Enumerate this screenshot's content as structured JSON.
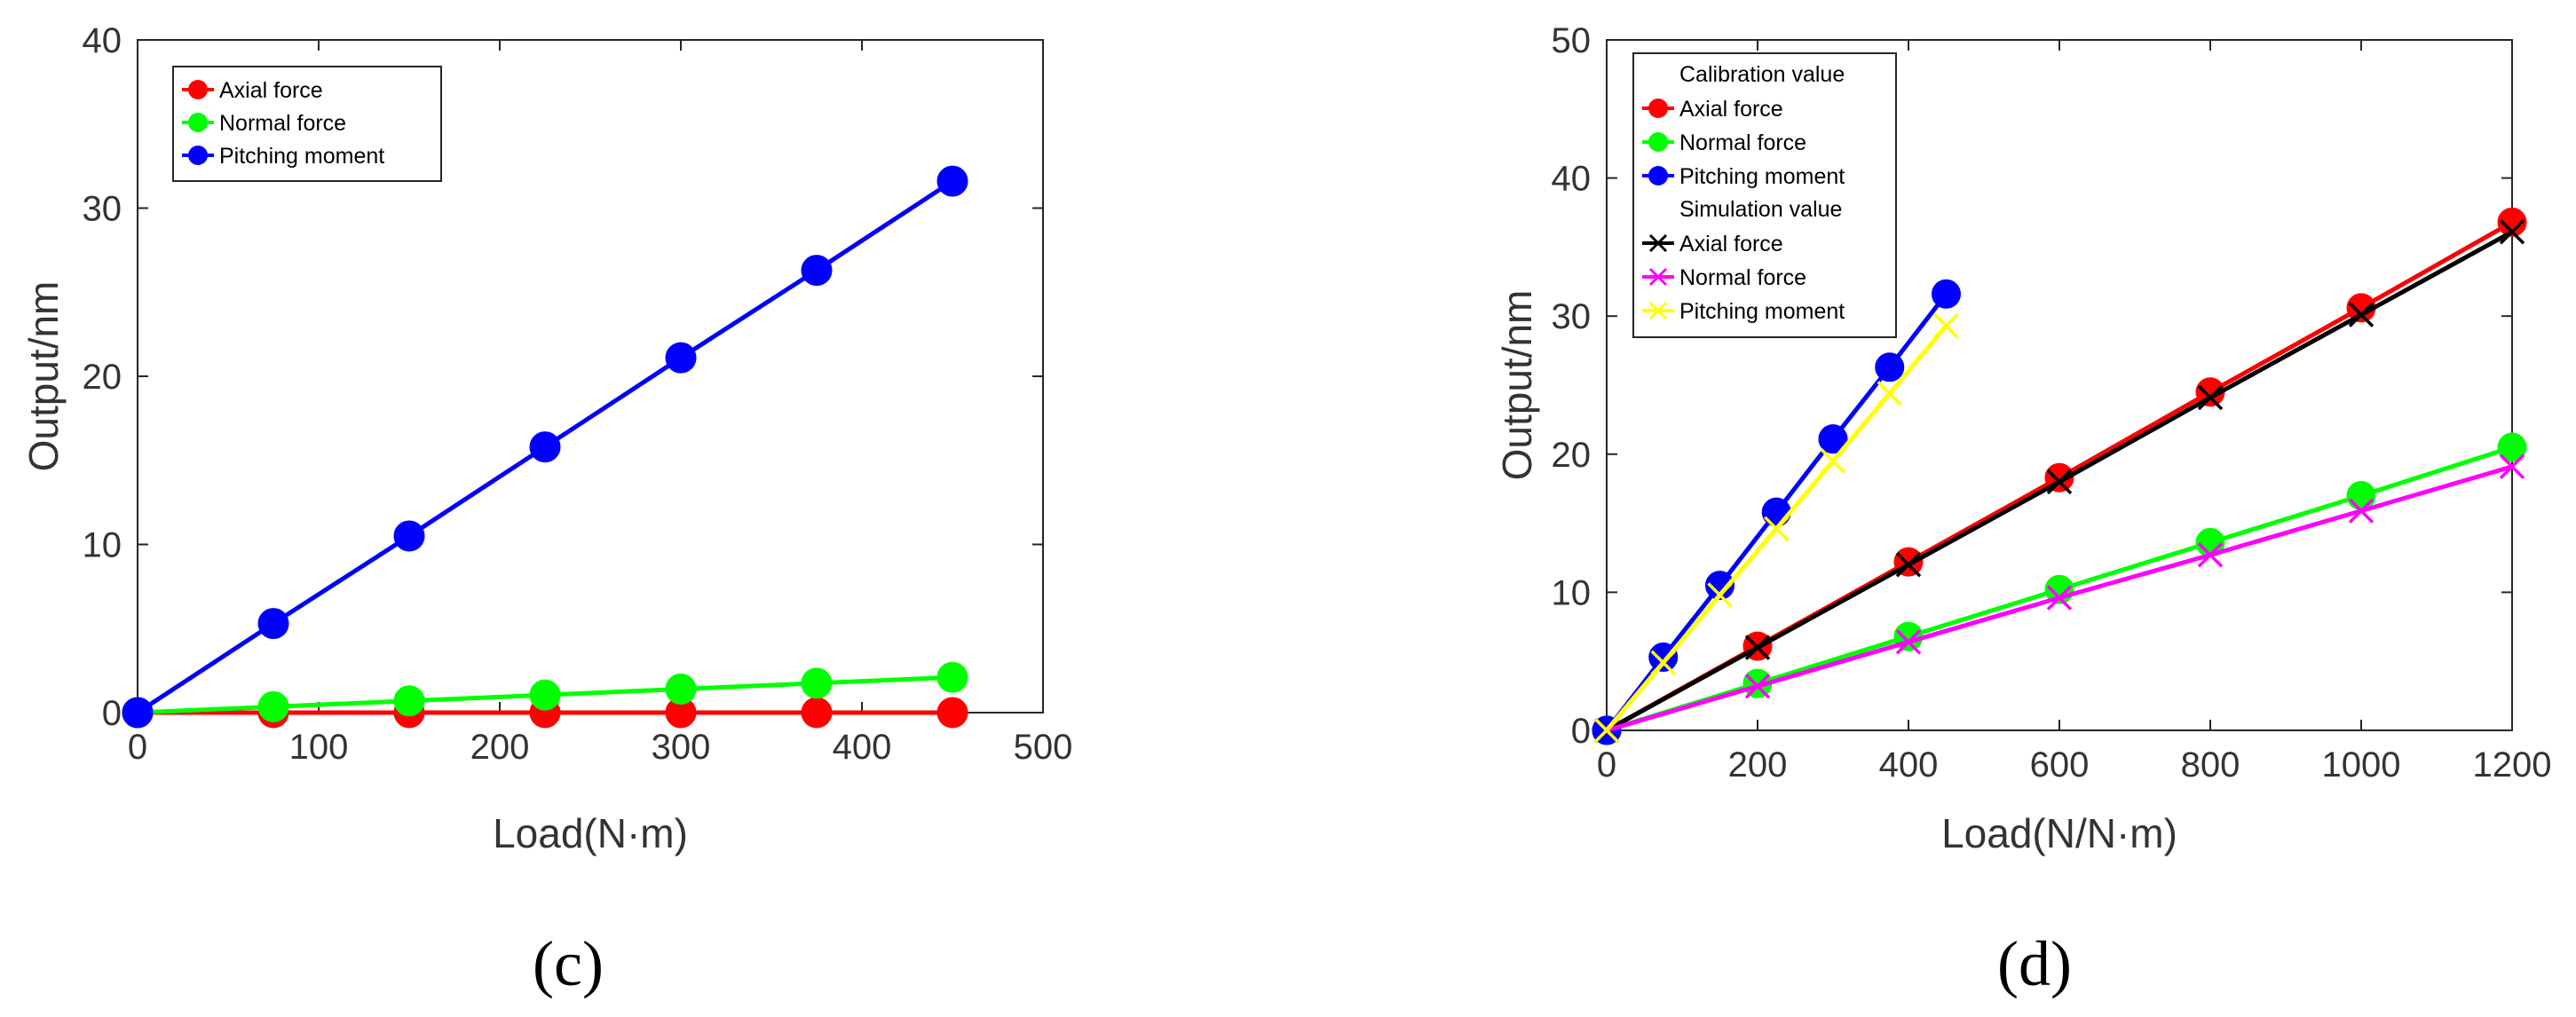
{
  "chart_data": [
    {
      "type": "line",
      "panel_label": "(c)",
      "title": "",
      "xlabel": "Load(N·m)",
      "ylabel": "Output/nm",
      "xlim": [
        0,
        500
      ],
      "ylim": [
        0,
        40
      ],
      "xticks": [
        0,
        100,
        200,
        300,
        400,
        500
      ],
      "yticks": [
        0,
        10,
        20,
        30,
        40
      ],
      "xtick_labels": [
        "0",
        "100",
        "200",
        "300",
        "400",
        "500"
      ],
      "ytick_labels": [
        "0",
        "10",
        "20",
        "30",
        "40"
      ],
      "grid": false,
      "legend_position": "top-left",
      "legend_groups": [],
      "series": [
        {
          "name": "Axial force",
          "color": "#ff0000",
          "marker": "circle",
          "x": [
            0,
            75,
            150,
            225,
            300,
            375,
            450
          ],
          "y": [
            0,
            0,
            0,
            0,
            0,
            0,
            0
          ]
        },
        {
          "name": "Normal force",
          "color": "#00ff00",
          "marker": "circle",
          "x": [
            0,
            75,
            150,
            225,
            300,
            375,
            450
          ],
          "y": [
            0,
            0.35,
            0.7,
            1.05,
            1.4,
            1.75,
            2.1
          ]
        },
        {
          "name": "Pitching moment",
          "color": "#0000ff",
          "marker": "circle",
          "x": [
            0,
            75,
            150,
            225,
            300,
            375,
            450
          ],
          "y": [
            0,
            5.3,
            10.5,
            15.8,
            21.1,
            26.3,
            31.6
          ]
        }
      ]
    },
    {
      "type": "line",
      "panel_label": "(d)",
      "title": "",
      "xlabel": "Load(N/N·m)",
      "ylabel": "Output/nm",
      "xlim": [
        0,
        1200
      ],
      "ylim": [
        0,
        50
      ],
      "xticks": [
        0,
        200,
        400,
        600,
        800,
        1000,
        1200
      ],
      "yticks": [
        0,
        10,
        20,
        30,
        40,
        50
      ],
      "xtick_labels": [
        "0",
        "200",
        "400",
        "600",
        "800",
        "1000",
        "1200"
      ],
      "ytick_labels": [
        "0",
        "10",
        "20",
        "30",
        "40",
        "50"
      ],
      "grid": false,
      "legend_position": "top-left",
      "legend_groups": [
        {
          "title": "Calibration value",
          "series_indices": [
            0,
            1,
            2
          ]
        },
        {
          "title": "Simulation value",
          "series_indices": [
            3,
            4,
            5
          ]
        }
      ],
      "series": [
        {
          "name": "Axial force",
          "group": "Calibration value",
          "color": "#ff0000",
          "marker": "circle",
          "x": [
            0,
            200,
            400,
            600,
            800,
            1000,
            1200
          ],
          "y": [
            0,
            6.1,
            12.2,
            18.3,
            24.5,
            30.6,
            36.8
          ]
        },
        {
          "name": "Normal force",
          "group": "Calibration value",
          "color": "#00ff00",
          "marker": "circle",
          "x": [
            0,
            200,
            400,
            600,
            800,
            1000,
            1200
          ],
          "y": [
            0,
            3.4,
            6.8,
            10.2,
            13.6,
            17.0,
            20.5
          ]
        },
        {
          "name": "Pitching moment",
          "group": "Calibration value",
          "color": "#0000ff",
          "marker": "circle",
          "x": [
            0,
            75,
            150,
            225,
            300,
            375,
            450
          ],
          "y": [
            0,
            5.3,
            10.5,
            15.8,
            21.1,
            26.3,
            31.6
          ]
        },
        {
          "name": "Axial force",
          "group": "Simulation value",
          "color": "#000000",
          "marker": "x",
          "x": [
            0,
            200,
            400,
            600,
            800,
            1000,
            1200
          ],
          "y": [
            0,
            6.0,
            12.0,
            18.0,
            24.1,
            30.1,
            36.1
          ]
        },
        {
          "name": "Normal force",
          "group": "Simulation value",
          "color": "#ff00ff",
          "marker": "x",
          "x": [
            0,
            200,
            400,
            600,
            800,
            1000,
            1200
          ],
          "y": [
            0,
            3.2,
            6.4,
            9.6,
            12.7,
            15.9,
            19.1
          ]
        },
        {
          "name": "Pitching moment",
          "group": "Simulation value",
          "color": "#ffff00",
          "marker": "x",
          "x": [
            0,
            75,
            150,
            225,
            300,
            375,
            450
          ],
          "y": [
            0,
            4.9,
            9.8,
            14.6,
            19.5,
            24.4,
            29.3
          ]
        }
      ]
    }
  ]
}
